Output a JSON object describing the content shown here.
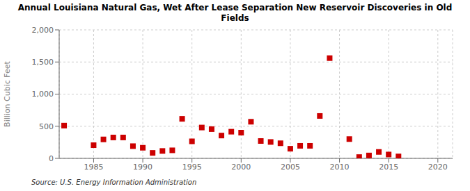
{
  "chart_data": {
    "type": "scatter",
    "title": "Annual Louisiana Natural Gas, Wet After Lease Separation New Reservoir Discoveries in Old\nFields",
    "ylabel": "Billion Cubic Feet",
    "annotations": [
      "Source: U.S. Energy Information Administration"
    ],
    "x": [
      1982,
      1985,
      1986,
      1987,
      1988,
      1989,
      1990,
      1991,
      1992,
      1993,
      1994,
      1995,
      1996,
      1997,
      1998,
      1999,
      2000,
      2001,
      2002,
      2003,
      2004,
      2005,
      2006,
      2007,
      2008,
      2009,
      2011,
      2012,
      2013,
      2014,
      2015,
      2016
    ],
    "values": [
      510,
      205,
      295,
      325,
      325,
      190,
      165,
      85,
      115,
      125,
      615,
      265,
      480,
      455,
      355,
      415,
      400,
      570,
      270,
      255,
      235,
      150,
      195,
      195,
      660,
      1560,
      300,
      20,
      45,
      100,
      60,
      30
    ],
    "color": "#cc0000",
    "marker": "square",
    "xlim": [
      1981.5,
      2021.5
    ],
    "xticks": [
      1985,
      1990,
      1995,
      2000,
      2005,
      2010,
      2015,
      2020
    ],
    "ylim": [
      0,
      2000
    ],
    "yticks": [
      0,
      500,
      {
        "value": 1000,
        "label": "1,000"
      },
      {
        "value": 1500,
        "label": "1,500"
      },
      {
        "value": 2000,
        "label": "2,000"
      }
    ],
    "grid": true
  }
}
